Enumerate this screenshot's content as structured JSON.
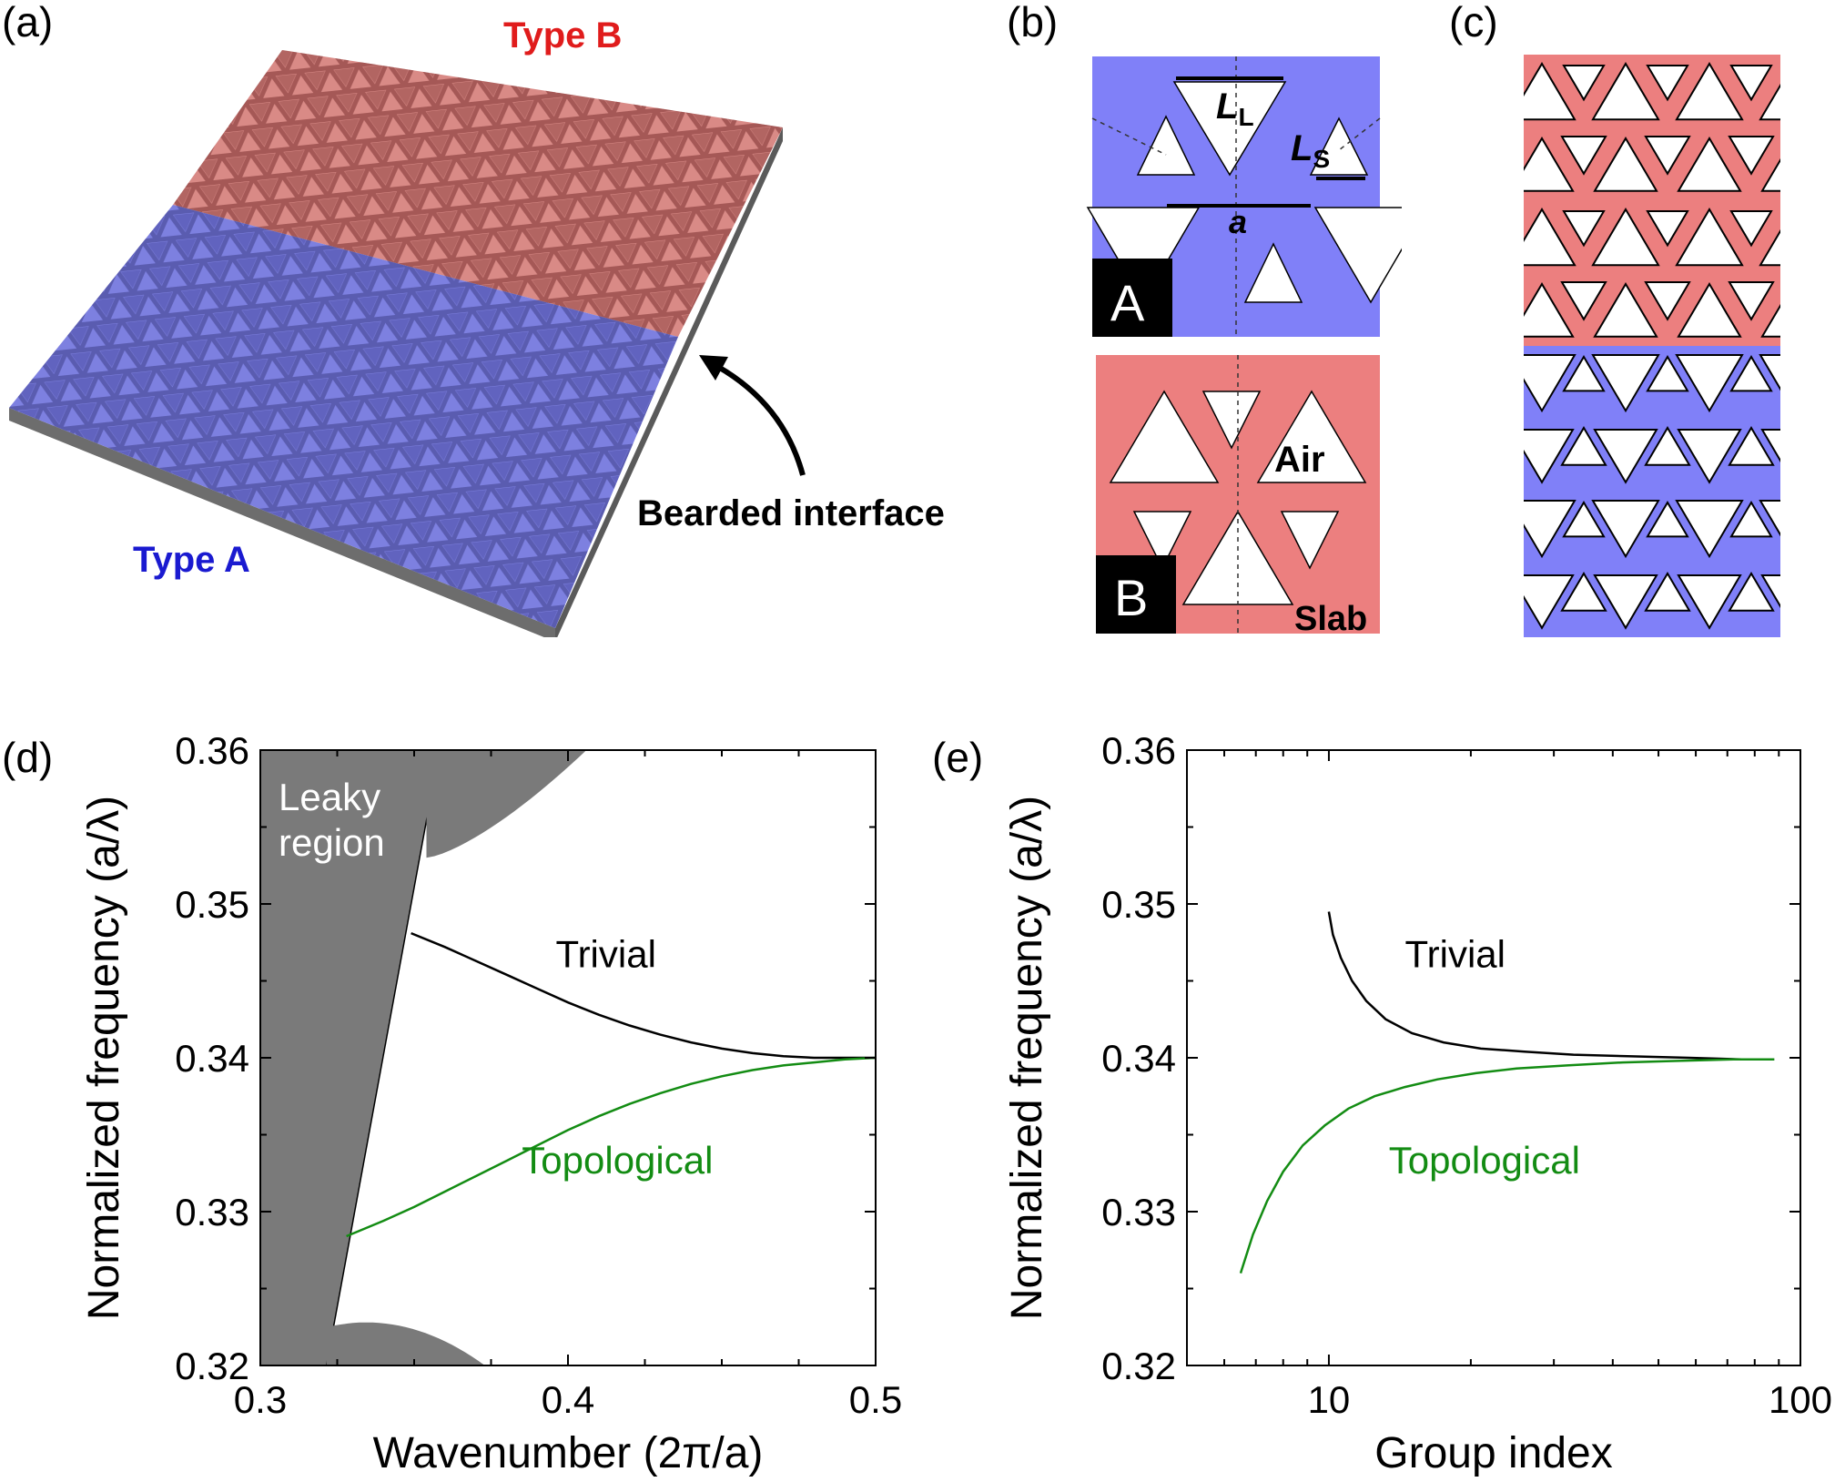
{
  "panels": {
    "a": {
      "tag": "(a)",
      "type_a": "Type A",
      "type_b": "Type B",
      "interface": "Bearded interface",
      "colors": {
        "type_a": "#7b7fe8",
        "type_b": "#e07b7b",
        "substrate": "#8a8a8a"
      }
    },
    "b": {
      "tag": "(b)",
      "box_a": "A",
      "box_b": "B",
      "L_large": "L",
      "L_large_sub": "L",
      "L_small": "L",
      "L_small_sub": "S",
      "period": "a",
      "air": "Air",
      "slab": "Slab",
      "colors": {
        "blue": "#8080f8",
        "red": "#ec7f7f"
      }
    },
    "c": {
      "tag": "(c)"
    },
    "d": {
      "tag": "(d)"
    },
    "e": {
      "tag": "(e)"
    }
  },
  "chart_data": [
    {
      "type": "line",
      "panel": "d",
      "xlabel": "Wavenumber (2π/a)",
      "ylabel": "Normalized frequency (a/λ)",
      "xlim": [
        0.3,
        0.5
      ],
      "ylim": [
        0.32,
        0.36
      ],
      "xticks": [
        "0.3",
        "0.4",
        "0.5"
      ],
      "yticks": [
        "0.32",
        "0.33",
        "0.34",
        "0.35",
        "0.36"
      ],
      "shaded_label_1": "Leaky",
      "shaded_label_2": "region",
      "series": [
        {
          "name": "Trivial",
          "color": "#000000",
          "x": [
            0.349,
            0.36,
            0.37,
            0.38,
            0.39,
            0.4,
            0.41,
            0.42,
            0.43,
            0.44,
            0.45,
            0.46,
            0.47,
            0.48,
            0.49,
            0.5
          ],
          "y": [
            0.3481,
            0.3472,
            0.3463,
            0.3454,
            0.3445,
            0.3436,
            0.3428,
            0.3421,
            0.3415,
            0.341,
            0.3406,
            0.3403,
            0.3401,
            0.34,
            0.34,
            0.34
          ]
        },
        {
          "name": "Topological",
          "color": "#138c13",
          "x": [
            0.328,
            0.34,
            0.35,
            0.36,
            0.37,
            0.38,
            0.39,
            0.4,
            0.41,
            0.42,
            0.43,
            0.44,
            0.45,
            0.46,
            0.47,
            0.48,
            0.49,
            0.5
          ],
          "y": [
            0.3284,
            0.3294,
            0.3303,
            0.3313,
            0.3323,
            0.3333,
            0.3343,
            0.3353,
            0.3362,
            0.337,
            0.3377,
            0.3383,
            0.3388,
            0.3392,
            0.3395,
            0.3397,
            0.3399,
            0.34
          ]
        }
      ],
      "colors": {
        "shade": "#7a7a7a"
      }
    },
    {
      "type": "line",
      "panel": "e",
      "xlabel": "Group index",
      "ylabel": "Normalized frequency (a/λ)",
      "xscale": "log",
      "xlim": [
        5,
        100
      ],
      "ylim": [
        0.32,
        0.36
      ],
      "xticks": [
        "10",
        "100"
      ],
      "yticks": [
        "0.32",
        "0.33",
        "0.34",
        "0.35",
        "0.36"
      ],
      "series": [
        {
          "name": "Trivial",
          "color": "#000000",
          "x": [
            10.0,
            10.2,
            10.6,
            11.2,
            12.0,
            13.2,
            15.0,
            17.5,
            21.0,
            26.0,
            33.0,
            43.0,
            58.0,
            75.0,
            88.0
          ],
          "y": [
            0.3495,
            0.348,
            0.3465,
            0.345,
            0.3437,
            0.3425,
            0.3416,
            0.341,
            0.3406,
            0.3404,
            0.3402,
            0.3401,
            0.34,
            0.3399,
            0.3399
          ]
        },
        {
          "name": "Topological",
          "color": "#138c13",
          "x": [
            6.5,
            6.9,
            7.4,
            8.0,
            8.8,
            9.8,
            11.0,
            12.5,
            14.5,
            17.0,
            20.5,
            25.0,
            32.0,
            42.0,
            55.0,
            72.0,
            88.0
          ],
          "y": [
            0.326,
            0.3285,
            0.3307,
            0.3326,
            0.3343,
            0.3356,
            0.3367,
            0.3375,
            0.3381,
            0.3386,
            0.339,
            0.3393,
            0.3395,
            0.3397,
            0.3398,
            0.3399,
            0.3399
          ]
        }
      ]
    }
  ]
}
